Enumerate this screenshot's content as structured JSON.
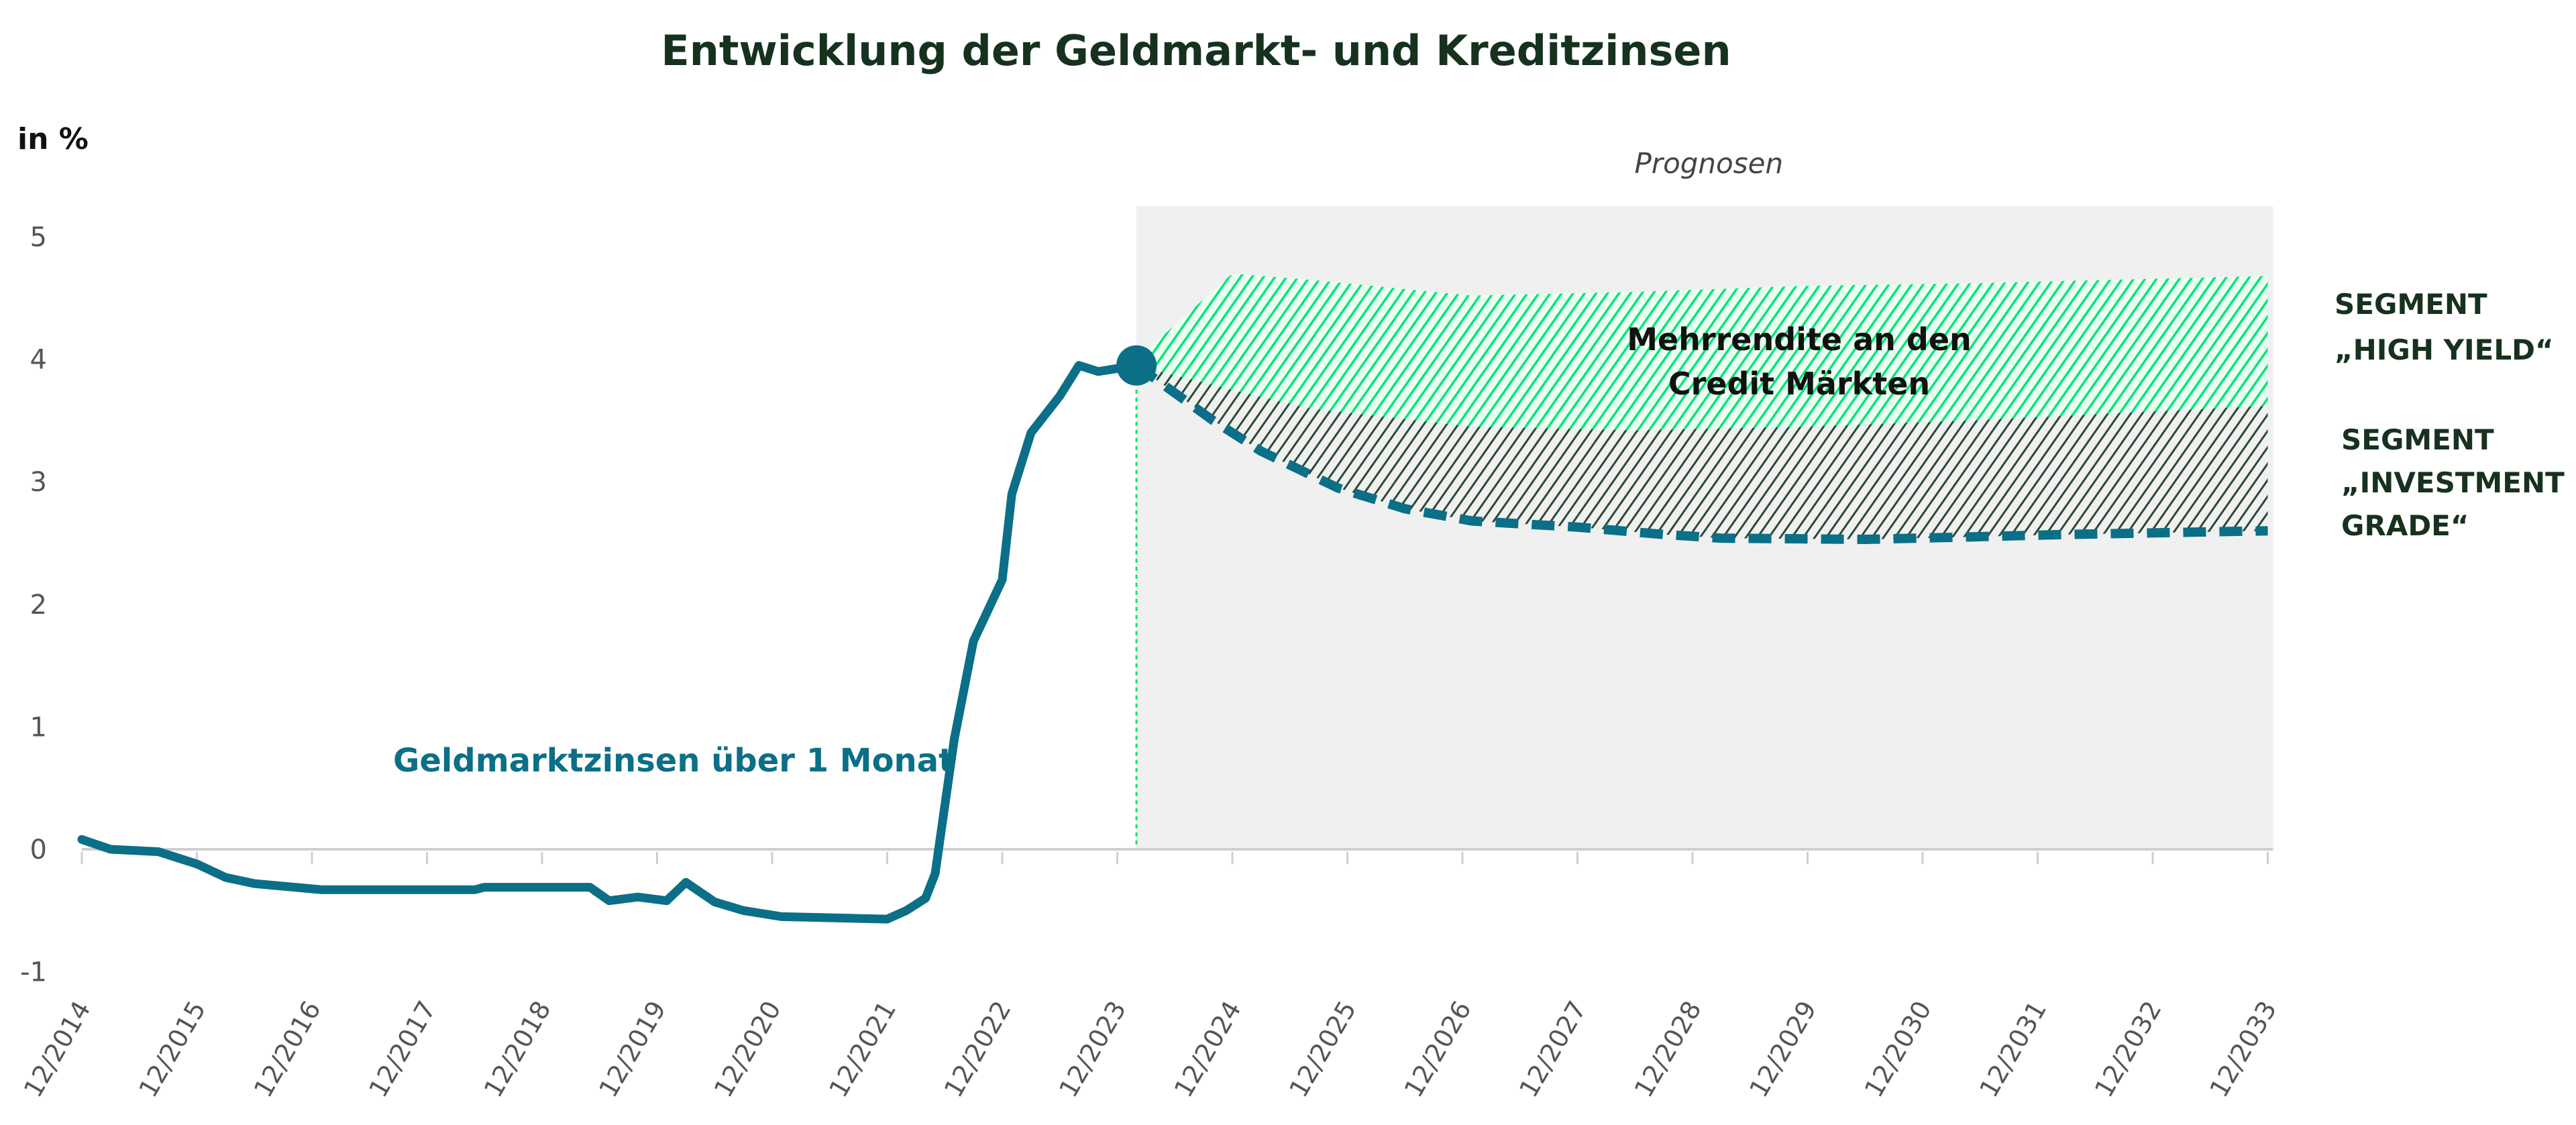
{
  "chart_data": {
    "type": "line",
    "title": "Entwicklung der Geldmarkt- und Kreditzinsen",
    "ylabel": "in %",
    "xlabel": "",
    "ylim": [
      -1,
      5
    ],
    "yticks": [
      -1,
      0,
      1,
      2,
      3,
      4,
      5
    ],
    "xticks": [
      "12/2014",
      "12/2015",
      "12/2016",
      "12/2017",
      "12/2018",
      "12/2019",
      "12/2020",
      "12/2021",
      "12/2022",
      "12/2023",
      "12/2024",
      "12/2025",
      "12/2026",
      "12/2027",
      "12/2028",
      "12/2029",
      "12/2030",
      "12/2031",
      "12/2032",
      "12/2033"
    ],
    "grid": false,
    "forecast_region": {
      "label": "Prognosen",
      "from": "2024-02",
      "to": "2033-12",
      "color": "#f0f0f0"
    },
    "series": [
      {
        "name": "Geldmarktzinsen über 1 Monat",
        "color": "#0b6f87",
        "style": "solid",
        "x": [
          "2014-12",
          "2015-03",
          "2015-08",
          "2015-12",
          "2016-03",
          "2016-06",
          "2017-01",
          "2018-05",
          "2018-06",
          "2019-05",
          "2019-07",
          "2019-10",
          "2020-01",
          "2020-03",
          "2020-06",
          "2020-09",
          "2021-01",
          "2021-12",
          "2022-02",
          "2022-04",
          "2022-05",
          "2022-07",
          "2022-09",
          "2022-12",
          "2023-01",
          "2023-03",
          "2023-06",
          "2023-08",
          "2023-10",
          "2024-02"
        ],
        "y": [
          0.08,
          0.0,
          -0.02,
          -0.12,
          -0.23,
          -0.28,
          -0.33,
          -0.33,
          -0.31,
          -0.31,
          -0.42,
          -0.39,
          -0.42,
          -0.27,
          -0.43,
          -0.5,
          -0.55,
          -0.57,
          -0.5,
          -0.4,
          -0.2,
          0.9,
          1.7,
          2.2,
          2.9,
          3.4,
          3.7,
          3.95,
          3.9,
          3.95
        ]
      },
      {
        "color": "#0b6f87",
        "style": "dashed",
        "x": [
          "2024-02",
          "2024-10",
          "2025-03",
          "2025-11",
          "2026-06",
          "2027-01",
          "2027-12",
          "2028-09",
          "2029-03",
          "2030-06",
          "2031-05",
          "2032-03",
          "2033-12"
        ],
        "y": [
          3.95,
          3.5,
          3.25,
          2.95,
          2.78,
          2.68,
          2.63,
          2.57,
          2.54,
          2.53,
          2.55,
          2.57,
          2.6
        ]
      }
    ],
    "bands": [
      {
        "name": "SEGMENT „INVESTMENT GRADE“",
        "color": "#2a4a35",
        "x": [
          "2024-02",
          "2024-12",
          "2025-08",
          "2027-01",
          "2028-06",
          "2029-12",
          "2031-05",
          "2033-12"
        ],
        "upper": [
          3.95,
          3.75,
          3.6,
          3.45,
          3.42,
          3.45,
          3.5,
          3.62
        ]
      },
      {
        "name": "SEGMENT „HIGH YIELD“",
        "color": "#00e676",
        "x": [
          "2024-02",
          "2024-12",
          "2025-08",
          "2027-01",
          "2028-06",
          "2029-12",
          "2031-05",
          "2033-12"
        ],
        "upper": [
          4.0,
          4.7,
          4.65,
          4.52,
          4.55,
          4.6,
          4.62,
          4.68
        ]
      }
    ],
    "annotations": {
      "spread": [
        "Mehrrendite an den",
        "Credit Märkten"
      ],
      "high_yield": [
        "SEGMENT",
        "„HIGH YIELD“"
      ],
      "investment_grade": [
        "SEGMENT",
        "„INVESTMENT",
        "GRADE“"
      ]
    },
    "marker": {
      "x": "2024-02",
      "y": 3.95
    }
  }
}
